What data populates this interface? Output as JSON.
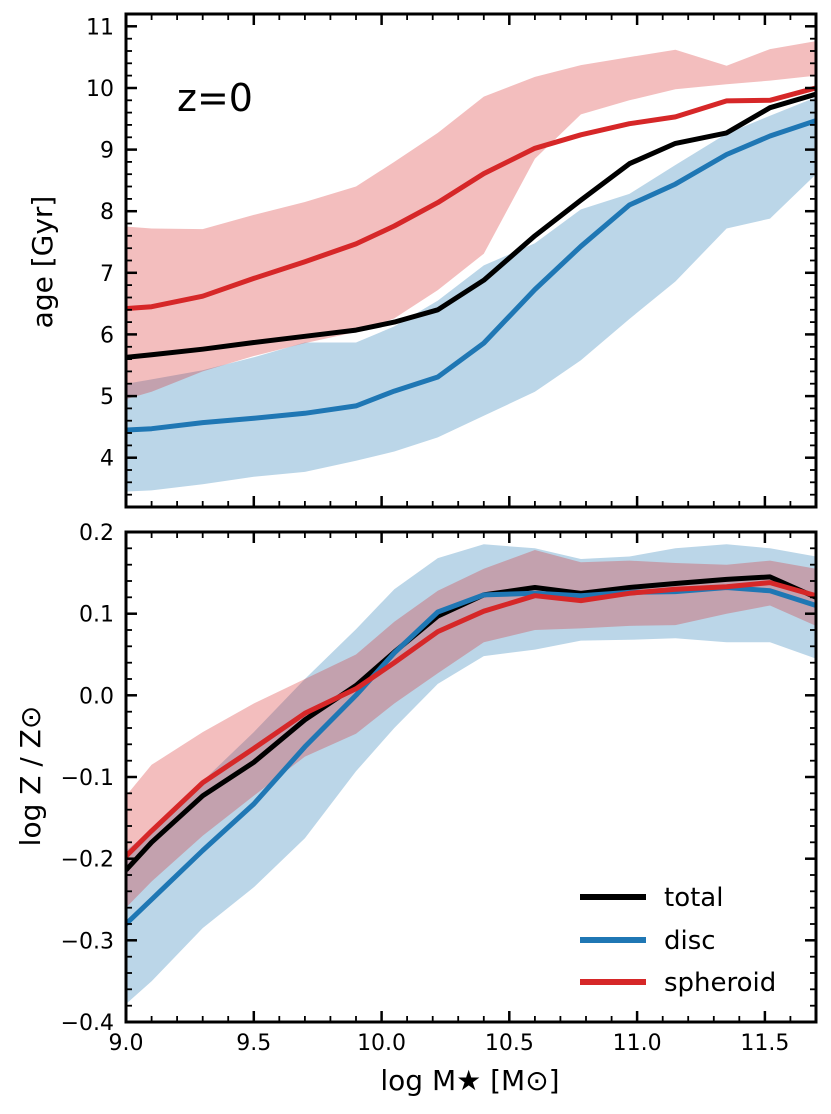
{
  "colors": {
    "total": "#000000",
    "disc": "#1f77b4",
    "spheroid": "#d62728",
    "disc_band": "#aecde6",
    "spheroid_band": "#eda8a8"
  },
  "chart_data": [
    {
      "type": "line",
      "panel": "top",
      "annotation": "z=0",
      "ylabel": "age  [Gyr]",
      "xlabel": "",
      "xlim": [
        9.0,
        11.7
      ],
      "ylim": [
        3.2,
        11.2
      ],
      "yticks": [
        4,
        5,
        6,
        7,
        8,
        9,
        10,
        11
      ],
      "ytick_labels": [
        "4",
        "5",
        "6",
        "7",
        "8",
        "9",
        "10",
        "11"
      ],
      "x": [
        9.0,
        9.1,
        9.3,
        9.5,
        9.7,
        9.9,
        10.05,
        10.22,
        10.4,
        10.6,
        10.78,
        10.97,
        11.15,
        11.35,
        11.52,
        11.7
      ],
      "series": [
        {
          "name": "total",
          "color_key": "total",
          "values": [
            5.63,
            5.67,
            5.76,
            5.87,
            5.97,
            6.07,
            6.2,
            6.4,
            6.88,
            7.6,
            8.18,
            8.77,
            9.1,
            9.27,
            9.68,
            9.9
          ],
          "band": null
        },
        {
          "name": "disc",
          "color_key": "disc",
          "values": [
            4.45,
            4.47,
            4.57,
            4.64,
            4.72,
            4.84,
            5.08,
            5.31,
            5.86,
            6.73,
            7.43,
            8.1,
            8.44,
            8.92,
            9.22,
            9.47
          ],
          "band": {
            "lower": [
              3.45,
              3.47,
              3.57,
              3.69,
              3.77,
              3.95,
              4.1,
              4.33,
              4.68,
              5.07,
              5.58,
              6.25,
              6.86,
              7.72,
              7.88,
              8.6
            ],
            "upper": [
              5.2,
              5.27,
              5.42,
              5.63,
              5.87,
              5.87,
              6.13,
              6.55,
              7.12,
              7.48,
              8.03,
              8.28,
              8.75,
              9.26,
              9.55,
              9.85
            ]
          }
        },
        {
          "name": "spheroid",
          "color_key": "spheroid",
          "values": [
            6.42,
            6.45,
            6.62,
            6.91,
            7.18,
            7.47,
            7.76,
            8.14,
            8.61,
            9.02,
            9.24,
            9.42,
            9.53,
            9.79,
            9.8,
            10.0
          ],
          "band": {
            "lower": [
              4.95,
              5.07,
              5.4,
              5.65,
              5.86,
              6.04,
              6.26,
              6.72,
              7.31,
              8.85,
              9.57,
              9.8,
              9.98,
              10.06,
              10.12,
              10.2
            ],
            "upper": [
              7.75,
              7.72,
              7.71,
              7.94,
              8.15,
              8.4,
              8.8,
              9.27,
              9.86,
              10.18,
              10.37,
              10.5,
              10.62,
              10.36,
              10.63,
              10.76
            ]
          }
        }
      ]
    },
    {
      "type": "line",
      "panel": "bottom",
      "ylabel": "log  Z / Z⊙",
      "xlabel": "log  M★  [M⊙]",
      "xlim": [
        9.0,
        11.7
      ],
      "ylim": [
        -0.4,
        0.2
      ],
      "yticks": [
        -0.4,
        -0.3,
        -0.2,
        -0.1,
        0.0,
        0.1,
        0.2
      ],
      "ytick_labels": [
        "−0.4",
        "−0.3",
        "−0.2",
        "−0.1",
        "0.0",
        "0.1",
        "0.2"
      ],
      "xticks": [
        9.0,
        9.5,
        10.0,
        10.5,
        11.0,
        11.5
      ],
      "xtick_labels": [
        "9.0",
        "9.5",
        "10.0",
        "10.5",
        "11.0",
        "11.5"
      ],
      "x": [
        9.0,
        9.1,
        9.3,
        9.5,
        9.7,
        9.9,
        10.05,
        10.22,
        10.4,
        10.6,
        10.78,
        10.97,
        11.15,
        11.35,
        11.52,
        11.7
      ],
      "series": [
        {
          "name": "total",
          "color_key": "total",
          "values": [
            -0.214,
            -0.18,
            -0.123,
            -0.082,
            -0.03,
            0.012,
            0.053,
            0.097,
            0.123,
            0.132,
            0.125,
            0.132,
            0.137,
            0.142,
            0.145,
            0.12
          ],
          "band": null
        },
        {
          "name": "disc",
          "color_key": "disc",
          "values": [
            -0.28,
            -0.25,
            -0.19,
            -0.133,
            -0.063,
            0.0,
            0.052,
            0.102,
            0.123,
            0.125,
            0.122,
            0.126,
            0.127,
            0.132,
            0.128,
            0.11
          ],
          "band": {
            "lower": [
              -0.378,
              -0.35,
              -0.285,
              -0.235,
              -0.175,
              -0.093,
              -0.04,
              0.014,
              0.048,
              0.056,
              0.067,
              0.068,
              0.07,
              0.065,
              0.065,
              0.045
            ],
            "upper": [
              -0.19,
              -0.165,
              -0.105,
              -0.045,
              0.02,
              0.081,
              0.13,
              0.168,
              0.185,
              0.18,
              0.167,
              0.17,
              0.18,
              0.185,
              0.18,
              0.17
            ]
          }
        },
        {
          "name": "spheroid",
          "color_key": "spheroid",
          "values": [
            -0.197,
            -0.166,
            -0.107,
            -0.065,
            -0.022,
            0.008,
            0.04,
            0.078,
            0.103,
            0.122,
            0.116,
            0.125,
            0.13,
            0.133,
            0.138,
            0.122
          ],
          "band": {
            "lower": [
              -0.26,
              -0.228,
              -0.172,
              -0.123,
              -0.075,
              -0.047,
              -0.01,
              0.027,
              0.065,
              0.08,
              0.082,
              0.085,
              0.086,
              0.1,
              0.11,
              0.085
            ],
            "upper": [
              -0.123,
              -0.085,
              -0.045,
              -0.01,
              0.02,
              0.05,
              0.09,
              0.128,
              0.155,
              0.178,
              0.163,
              0.165,
              0.162,
              0.16,
              0.165,
              0.155
            ]
          }
        }
      ]
    }
  ],
  "legend": {
    "position": "lower-right",
    "entries": [
      {
        "label": "total",
        "color_key": "total"
      },
      {
        "label": "disc",
        "color_key": "disc"
      },
      {
        "label": "spheroid",
        "color_key": "spheroid"
      }
    ]
  }
}
